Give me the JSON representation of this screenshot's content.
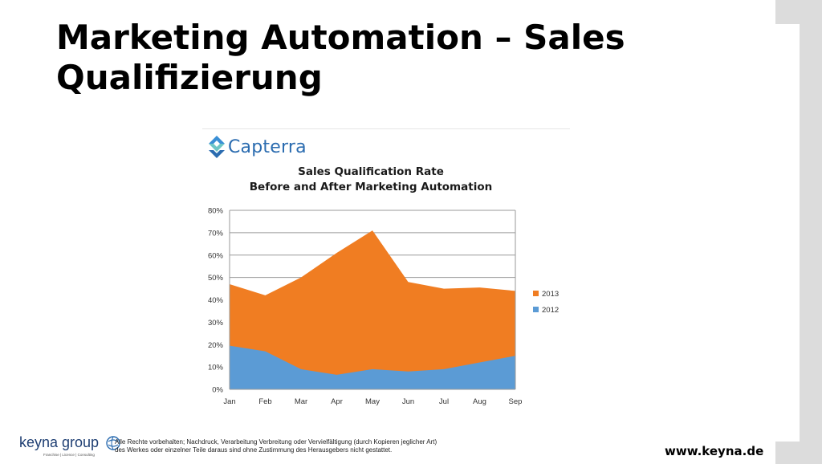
{
  "slide": {
    "title": "Marketing Automation – Sales Qualifizierung"
  },
  "brand": {
    "name": "Capterra",
    "icon": "capterra-logo-icon"
  },
  "chart_data": {
    "type": "area",
    "title_lines": [
      "Sales Qualification Rate",
      "Before and After Marketing Automation"
    ],
    "categories": [
      "Jan",
      "Feb",
      "Mar",
      "Apr",
      "May",
      "Jun",
      "Jul",
      "Aug",
      "Sep"
    ],
    "y_ticks": [
      "0%",
      "10%",
      "20%",
      "30%",
      "40%",
      "50%",
      "60%",
      "70%",
      "80%"
    ],
    "ylim": [
      0,
      80
    ],
    "stacked": false,
    "grid": true,
    "legend_position": "right",
    "series": [
      {
        "name": "2013",
        "color": "#f07d22",
        "values": [
          47,
          42,
          50,
          61,
          71,
          48,
          45,
          45.5,
          44
        ]
      },
      {
        "name": "2012",
        "color": "#5b9bd5",
        "values": [
          19.5,
          17,
          9,
          6.5,
          9,
          8,
          9,
          12,
          15
        ]
      }
    ],
    "legend_order": [
      "2013",
      "2012"
    ]
  },
  "footer": {
    "company": "keyna group",
    "company_tagline": "Franchise | Licence | Consulting",
    "copyright_line1": "Alle Rechte vorbehalten; Nachdruck, Verarbeitung Verbreitung oder Vervielfältigung (durch Kopieren jeglicher Art)",
    "copyright_line2": "des Werkes oder einzelner Teile daraus sind ohne Zustimmung des Herausgebers nicht gestattet.",
    "website": "www.keyna.de"
  }
}
